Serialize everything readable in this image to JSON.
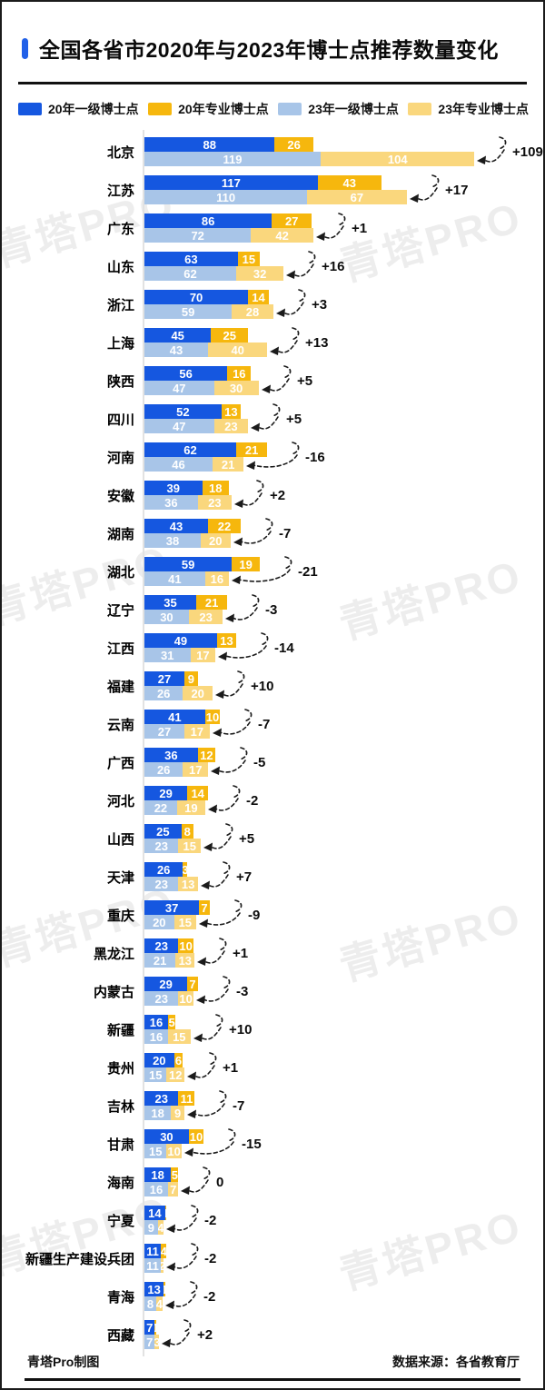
{
  "header": {
    "title": "全国各省市2020年与2023年博士点推荐数量变化"
  },
  "colors": {
    "accent": "#2160e8",
    "blue20": "#1557e0",
    "gold20": "#f6b70d",
    "blue23": "#a8c5e8",
    "gold23": "#fad77d"
  },
  "legend": {
    "items": [
      {
        "label": "20年一级博士点",
        "color_key": "blue20"
      },
      {
        "label": "20年专业博士点",
        "color_key": "gold20"
      },
      {
        "label": "23年一级博士点",
        "color_key": "blue23"
      },
      {
        "label": "23年专业博士点",
        "color_key": "gold23"
      }
    ]
  },
  "watermark": {
    "text": "青塔PRO"
  },
  "footer": {
    "left": "青塔Pro制图",
    "right": "数据来源：各省教育厅"
  },
  "chart_data": {
    "type": "bar",
    "orientation": "horizontal",
    "stacked": true,
    "series_labels": [
      "20年一级博士点",
      "20年专业博士点",
      "23年一级博士点",
      "23年专业博士点"
    ],
    "value_note": "y2020 and y2023 are [一级博士点, 专业博士点]; delta = 2023 total - 2020 total",
    "rows": [
      {
        "province": "北京",
        "y2020": [
          88,
          26
        ],
        "y2023": [
          119,
          104
        ],
        "delta": "+109"
      },
      {
        "province": "江苏",
        "y2020": [
          117,
          43
        ],
        "y2023": [
          110,
          67
        ],
        "delta": "+17"
      },
      {
        "province": "广东",
        "y2020": [
          86,
          27
        ],
        "y2023": [
          72,
          42
        ],
        "delta": "+1"
      },
      {
        "province": "山东",
        "y2020": [
          63,
          15
        ],
        "y2023": [
          62,
          32
        ],
        "delta": "+16"
      },
      {
        "province": "浙江",
        "y2020": [
          70,
          14
        ],
        "y2023": [
          59,
          28
        ],
        "delta": "+3"
      },
      {
        "province": "上海",
        "y2020": [
          45,
          25
        ],
        "y2023": [
          43,
          40
        ],
        "delta": "+13"
      },
      {
        "province": "陕西",
        "y2020": [
          56,
          16
        ],
        "y2023": [
          47,
          30
        ],
        "delta": "+5"
      },
      {
        "province": "四川",
        "y2020": [
          52,
          13
        ],
        "y2023": [
          47,
          23
        ],
        "delta": "+5"
      },
      {
        "province": "河南",
        "y2020": [
          62,
          21
        ],
        "y2023": [
          46,
          21
        ],
        "delta": "-16"
      },
      {
        "province": "安徽",
        "y2020": [
          39,
          18
        ],
        "y2023": [
          36,
          23
        ],
        "delta": "+2"
      },
      {
        "province": "湖南",
        "y2020": [
          43,
          22
        ],
        "y2023": [
          38,
          20
        ],
        "delta": "-7"
      },
      {
        "province": "湖北",
        "y2020": [
          59,
          19
        ],
        "y2023": [
          41,
          16
        ],
        "delta": "-21"
      },
      {
        "province": "辽宁",
        "y2020": [
          35,
          21
        ],
        "y2023": [
          30,
          23
        ],
        "delta": "-3"
      },
      {
        "province": "江西",
        "y2020": [
          49,
          13
        ],
        "y2023": [
          31,
          17
        ],
        "delta": "-14"
      },
      {
        "province": "福建",
        "y2020": [
          27,
          9
        ],
        "y2023": [
          26,
          20
        ],
        "delta": "+10"
      },
      {
        "province": "云南",
        "y2020": [
          41,
          10
        ],
        "y2023": [
          27,
          17
        ],
        "delta": "-7"
      },
      {
        "province": "广西",
        "y2020": [
          36,
          12
        ],
        "y2023": [
          26,
          17
        ],
        "delta": "-5"
      },
      {
        "province": "河北",
        "y2020": [
          29,
          14
        ],
        "y2023": [
          22,
          19
        ],
        "delta": "-2"
      },
      {
        "province": "山西",
        "y2020": [
          25,
          8
        ],
        "y2023": [
          23,
          15
        ],
        "delta": "+5"
      },
      {
        "province": "天津",
        "y2020": [
          26,
          3
        ],
        "y2023": [
          23,
          13
        ],
        "delta": "+7"
      },
      {
        "province": "重庆",
        "y2020": [
          37,
          7
        ],
        "y2023": [
          20,
          15
        ],
        "delta": "-9"
      },
      {
        "province": "黑龙江",
        "y2020": [
          23,
          10
        ],
        "y2023": [
          21,
          13
        ],
        "delta": "+1"
      },
      {
        "province": "内蒙古",
        "y2020": [
          29,
          7
        ],
        "y2023": [
          23,
          10
        ],
        "delta": "-3"
      },
      {
        "province": "新疆",
        "y2020": [
          16,
          5
        ],
        "y2023": [
          16,
          15
        ],
        "delta": "+10"
      },
      {
        "province": "贵州",
        "y2020": [
          20,
          6
        ],
        "y2023": [
          15,
          12
        ],
        "delta": "+1"
      },
      {
        "province": "吉林",
        "y2020": [
          23,
          11
        ],
        "y2023": [
          18,
          9
        ],
        "delta": "-7"
      },
      {
        "province": "甘肃",
        "y2020": [
          30,
          10
        ],
        "y2023": [
          15,
          10
        ],
        "delta": "-15"
      },
      {
        "province": "海南",
        "y2020": [
          18,
          5
        ],
        "y2023": [
          16,
          7
        ],
        "delta": "0"
      },
      {
        "province": "宁夏",
        "y2020": [
          14,
          1
        ],
        "y2023": [
          9,
          4
        ],
        "delta": "-2"
      },
      {
        "province": "新疆生产建设兵团",
        "y2020": [
          11,
          4
        ],
        "y2023": [
          11,
          2
        ],
        "delta": "-2"
      },
      {
        "province": "青海",
        "y2020": [
          13,
          1
        ],
        "y2023": [
          8,
          4
        ],
        "delta": "-2"
      },
      {
        "province": "西藏",
        "y2020": [
          7,
          1
        ],
        "y2023": [
          7,
          3
        ],
        "delta": "+2"
      }
    ]
  }
}
